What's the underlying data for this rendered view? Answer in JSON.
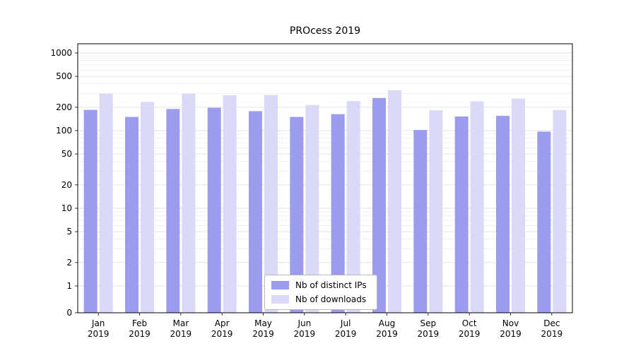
{
  "chart_data": {
    "type": "bar",
    "title": "PROcess 2019",
    "xlabel": "",
    "ylabel": "",
    "yscale": "symlog",
    "grid": true,
    "legend_position": "lower center",
    "yticks": [
      0,
      1,
      2,
      5,
      10,
      20,
      50,
      100,
      200,
      500,
      1000
    ],
    "ylim": [
      0,
      1300
    ],
    "categories": [
      "Jan 2019",
      "Feb 2019",
      "Mar 2019",
      "Apr 2019",
      "May 2019",
      "Jun 2019",
      "Jul 2019",
      "Aug 2019",
      "Sep 2019",
      "Oct 2019",
      "Nov 2019",
      "Dec 2019"
    ],
    "series": [
      {
        "name": "Nb of distinct IPs",
        "color": "#9c9cee",
        "values": [
          185,
          150,
          190,
          197,
          178,
          150,
          163,
          263,
          102,
          152,
          155,
          97
        ]
      },
      {
        "name": "Nb of downloads",
        "color": "#dadaf8",
        "values": [
          300,
          235,
          300,
          286,
          288,
          214,
          240,
          332,
          183,
          238,
          258,
          184
        ]
      }
    ]
  }
}
